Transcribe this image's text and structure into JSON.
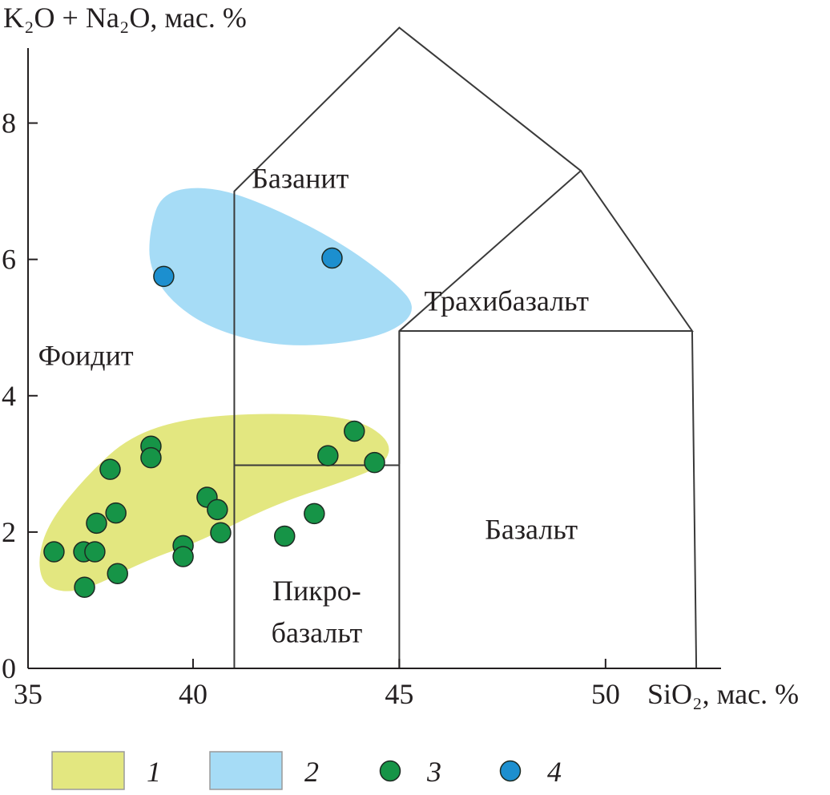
{
  "chart_data": {
    "type": "scatter",
    "title": "",
    "ylabel": "K₂O + Na₂O, мас. %",
    "xlabel": "SiO₂, мас. %",
    "xlim": [
      36.0,
      52.8
    ],
    "ylim": [
      0,
      9.1
    ],
    "x_ticks": [
      35,
      40,
      45,
      50
    ],
    "y_ticks": [
      0,
      2,
      4,
      6,
      8
    ],
    "grid": false,
    "fields": [
      {
        "name": "Базанит",
        "lines": [
          [
            [
              41,
              0
            ],
            [
              41,
              7
            ],
            [
              45,
              9.4
            ],
            [
              49.4,
              7.3
            ],
            [
              45,
              4.95
            ],
            [
              45,
              3
            ]
          ]
        ]
      },
      {
        "name": "Трахибазальт",
        "lines": [
          [
            [
              45,
              4.95
            ],
            [
              52.1,
              4.95
            ],
            [
              49.4,
              7.3
            ]
          ]
        ]
      },
      {
        "name": "Базальт",
        "lines": [
          [
            [
              45,
              4.95
            ],
            [
              45,
              0
            ]
          ],
          [
            [
              52.1,
              4.95
            ],
            [
              52.2,
              0
            ]
          ]
        ]
      },
      {
        "name": "Пикро-базальт",
        "lines": [
          [
            [
              41,
              2.98
            ],
            [
              45,
              2.98
            ]
          ]
        ]
      }
    ],
    "field_labels": [
      {
        "text": "Базанит",
        "x": 42.6,
        "y": 7.05
      },
      {
        "text": "Трахибазальт",
        "x": 47.6,
        "y": 5.25
      },
      {
        "text": "Базальт",
        "x": 48.2,
        "y": 1.9
      },
      {
        "text": "Пикро-",
        "x": 43.0,
        "y": 1.0
      },
      {
        "text": "базальт",
        "x": 43.0,
        "y": 0.38
      },
      {
        "text": "Фоидит",
        "x": 37.4,
        "y": 4.45
      }
    ],
    "areas": [
      {
        "legend": "1",
        "color": "#e3e780",
        "points": [
          [
            36.22,
            1.58
          ],
          [
            36.51,
            2.16
          ],
          [
            37.49,
            2.87
          ],
          [
            38.46,
            3.4
          ],
          [
            39.82,
            3.67
          ],
          [
            41.76,
            3.75
          ],
          [
            43.89,
            3.69
          ],
          [
            44.81,
            3.34
          ],
          [
            44.67,
            2.99
          ],
          [
            43.7,
            2.75
          ],
          [
            41.95,
            2.4
          ],
          [
            40.2,
            1.87
          ],
          [
            38.84,
            1.58
          ],
          [
            37.29,
            1.11
          ],
          [
            36.42,
            1.16
          ]
        ]
      },
      {
        "legend": "2",
        "color": "#a6dcf6",
        "points": [
          [
            38.94,
            6.4
          ],
          [
            39.23,
            6.99
          ],
          [
            40.4,
            7.08
          ],
          [
            41.76,
            6.81
          ],
          [
            43.5,
            6.28
          ],
          [
            44.86,
            5.69
          ],
          [
            45.45,
            5.28
          ],
          [
            44.86,
            4.93
          ],
          [
            43.5,
            4.75
          ],
          [
            41.95,
            4.73
          ],
          [
            40.4,
            4.99
          ],
          [
            39.43,
            5.4
          ],
          [
            38.94,
            5.88
          ]
        ]
      }
    ],
    "series": [
      {
        "name": "3",
        "color": "#169447",
        "points": [
          [
            36.63,
            1.71
          ],
          [
            37.35,
            1.71
          ],
          [
            37.62,
            1.71
          ],
          [
            37.37,
            1.19
          ],
          [
            38.17,
            1.39
          ],
          [
            37.66,
            2.13
          ],
          [
            38.13,
            2.28
          ],
          [
            37.99,
            2.92
          ],
          [
            38.98,
            3.26
          ],
          [
            38.98,
            3.09
          ],
          [
            39.76,
            1.8
          ],
          [
            39.76,
            1.64
          ],
          [
            40.34,
            2.51
          ],
          [
            40.59,
            2.33
          ],
          [
            40.67,
            1.99
          ],
          [
            42.22,
            1.94
          ],
          [
            42.94,
            2.27
          ],
          [
            43.27,
            3.12
          ],
          [
            43.91,
            3.48
          ],
          [
            44.4,
            3.02
          ]
        ]
      },
      {
        "name": "4",
        "color": "#1c8fcf",
        "points": [
          [
            39.29,
            5.75
          ],
          [
            43.37,
            6.02
          ]
        ]
      }
    ],
    "legend": {
      "placement": "bottom",
      "entries": [
        {
          "label": "1",
          "kind": "area",
          "color": "#e3e780"
        },
        {
          "label": "2",
          "kind": "area",
          "color": "#a6dcf6"
        },
        {
          "label": "3",
          "kind": "point",
          "color": "#169447"
        },
        {
          "label": "4",
          "kind": "point",
          "color": "#1c8fcf"
        }
      ]
    }
  }
}
